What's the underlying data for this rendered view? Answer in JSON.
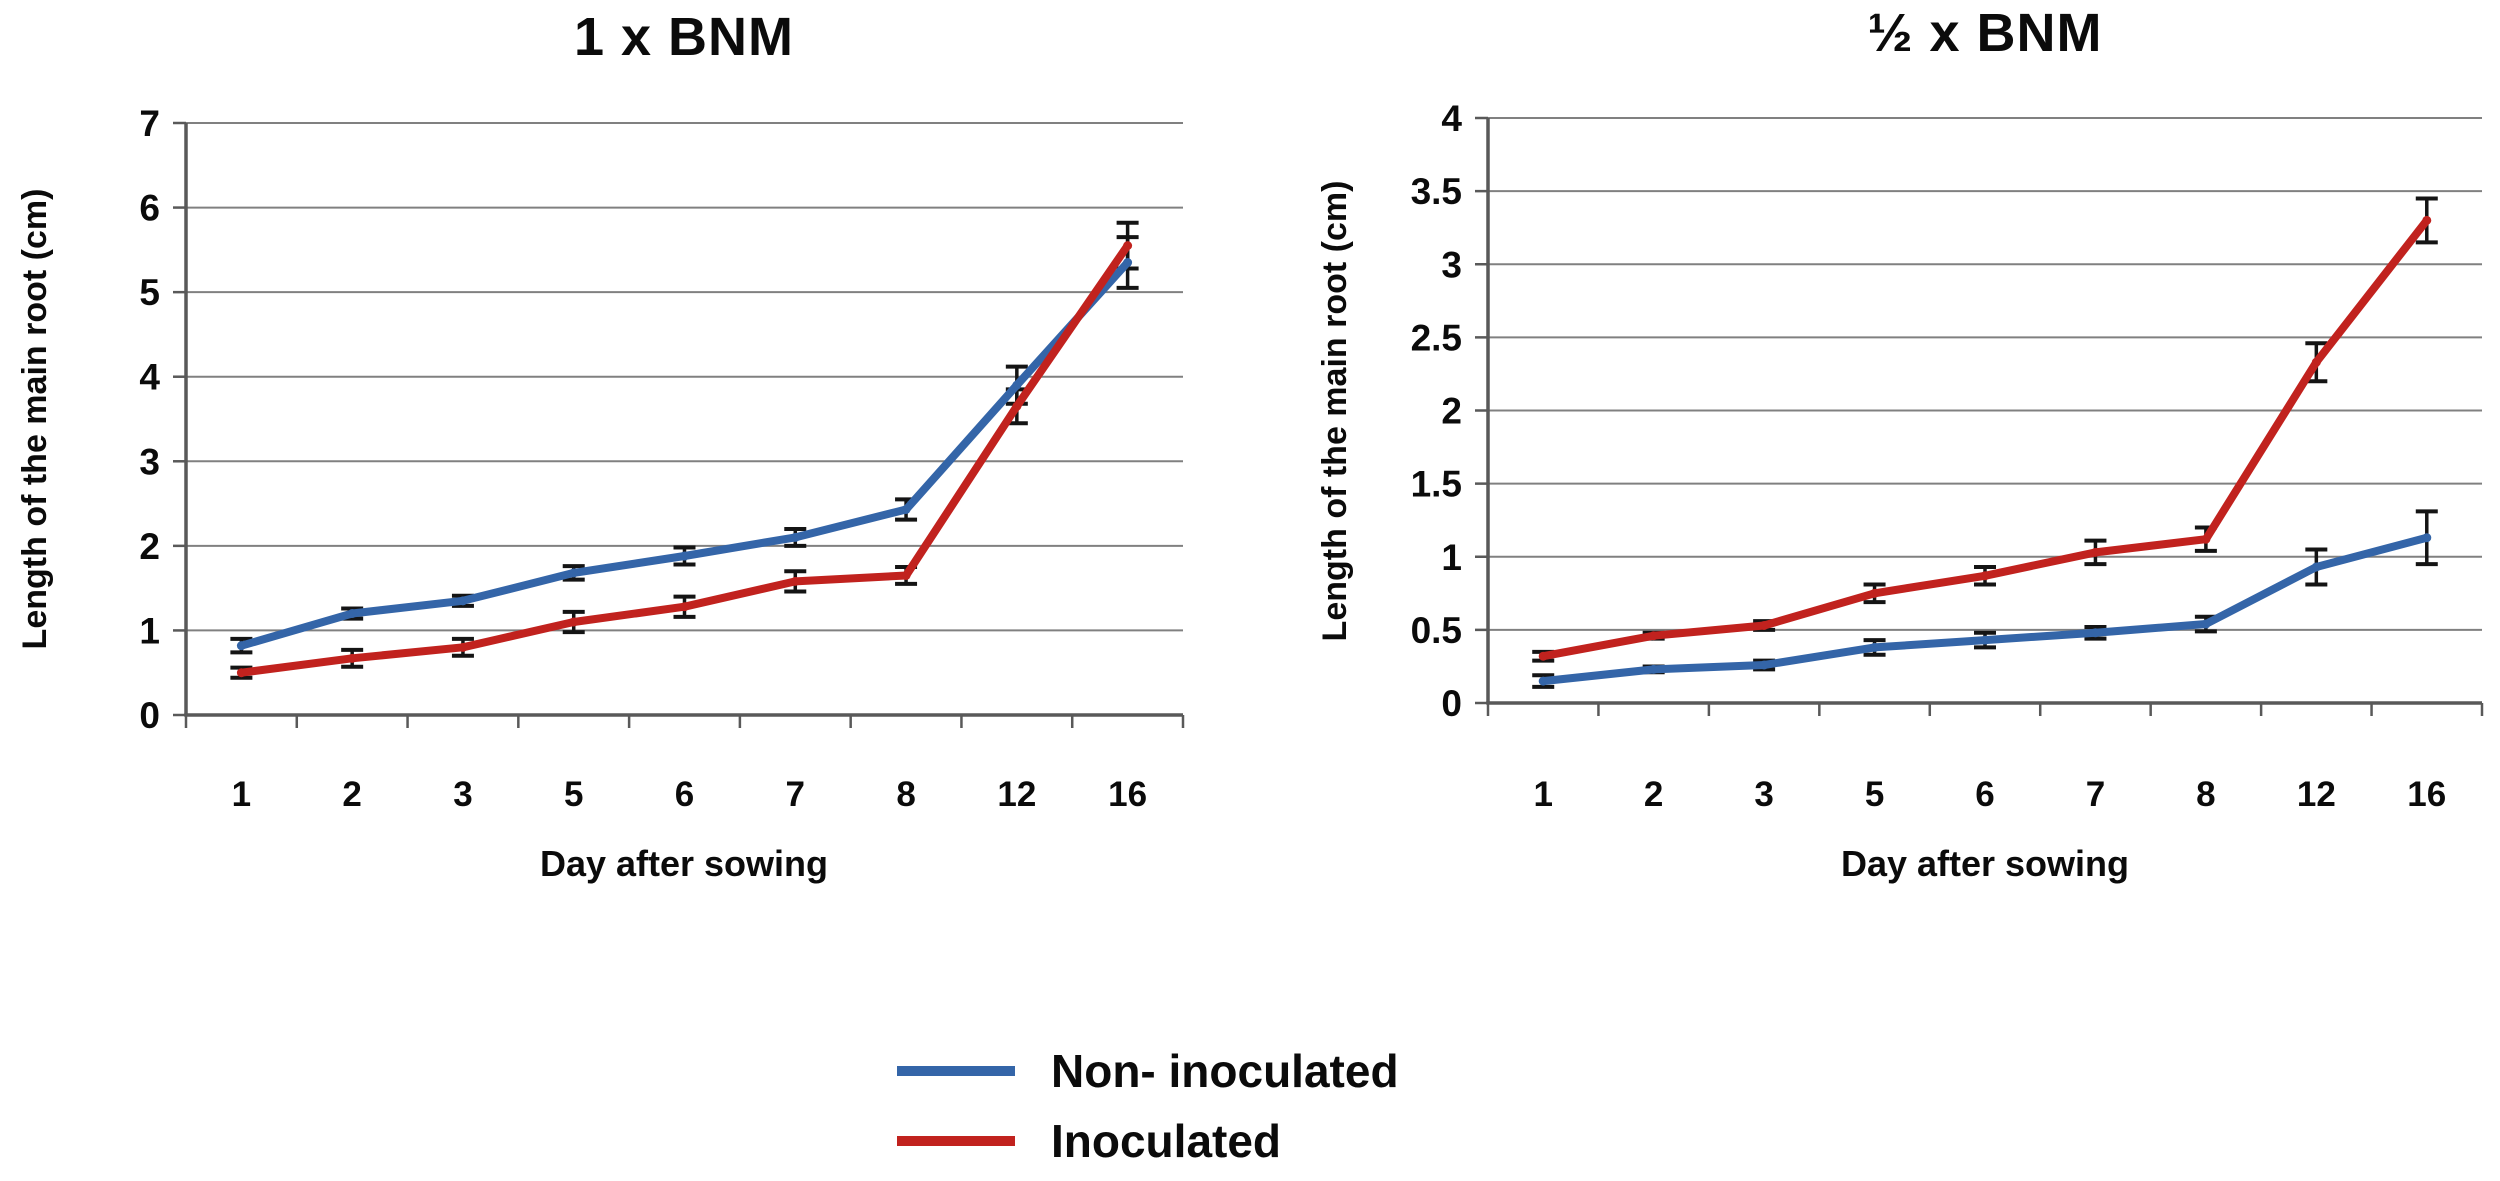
{
  "figure": {
    "background": "#ffffff",
    "grid_color": "#808080",
    "axis_color": "#595959",
    "error_bar_color": "#141414",
    "accent_blue": "#3465A8",
    "accent_red": "#C1221E"
  },
  "legend": {
    "position": "bottom-center",
    "items": [
      {
        "label": "Non- inoculated",
        "color": "#3465A8"
      },
      {
        "label": "Inoculated",
        "color": "#C1221E"
      }
    ]
  },
  "chart_data": [
    {
      "type": "line",
      "title": "1 x BNM",
      "xlabel": "Day after sowing",
      "ylabel": "Length of the main root (cm)",
      "categories": [
        "1",
        "2",
        "3",
        "5",
        "6",
        "7",
        "8",
        "12",
        "16"
      ],
      "ylim": [
        0,
        7
      ],
      "ytick_labels": [
        "0",
        "1",
        "2",
        "3",
        "4",
        "5",
        "6",
        "7"
      ],
      "grid": true,
      "legend_position": "none",
      "series": [
        {
          "name": "Non- inoculated",
          "color": "#3465A8",
          "values": [
            0.82,
            1.2,
            1.35,
            1.68,
            1.88,
            2.1,
            2.43,
            3.9,
            5.35
          ],
          "errors": [
            0.08,
            0.06,
            0.06,
            0.08,
            0.1,
            0.1,
            0.12,
            0.22,
            0.3
          ]
        },
        {
          "name": "Inoculated",
          "color": "#C1221E",
          "values": [
            0.5,
            0.67,
            0.8,
            1.1,
            1.28,
            1.58,
            1.65,
            3.65,
            5.55
          ],
          "errors": [
            0.06,
            0.1,
            0.1,
            0.12,
            0.12,
            0.12,
            0.1,
            0.2,
            0.27
          ]
        }
      ]
    },
    {
      "type": "line",
      "title": "½ x BNM",
      "xlabel": "Day after sowing",
      "ylabel": "Length of the main root (cm)",
      "categories": [
        "1",
        "2",
        "3",
        "5",
        "6",
        "7",
        "8",
        "12",
        "16"
      ],
      "ylim": [
        0,
        4
      ],
      "ytick_labels": [
        "0",
        "0.5",
        "1",
        "1.5",
        "2",
        "2.5",
        "3",
        "3.5",
        "4"
      ],
      "grid": true,
      "legend_position": "none",
      "series": [
        {
          "name": "Non- inoculated",
          "color": "#3465A8",
          "values": [
            0.15,
            0.23,
            0.26,
            0.38,
            0.43,
            0.48,
            0.54,
            0.93,
            1.13
          ],
          "errors": [
            0.04,
            0.02,
            0.03,
            0.05,
            0.05,
            0.04,
            0.05,
            0.12,
            0.18
          ]
        },
        {
          "name": "Inoculated",
          "color": "#C1221E",
          "values": [
            0.32,
            0.46,
            0.53,
            0.75,
            0.87,
            1.03,
            1.12,
            2.33,
            3.3
          ],
          "errors": [
            0.03,
            0.02,
            0.03,
            0.06,
            0.06,
            0.08,
            0.08,
            0.13,
            0.15
          ]
        }
      ]
    }
  ]
}
